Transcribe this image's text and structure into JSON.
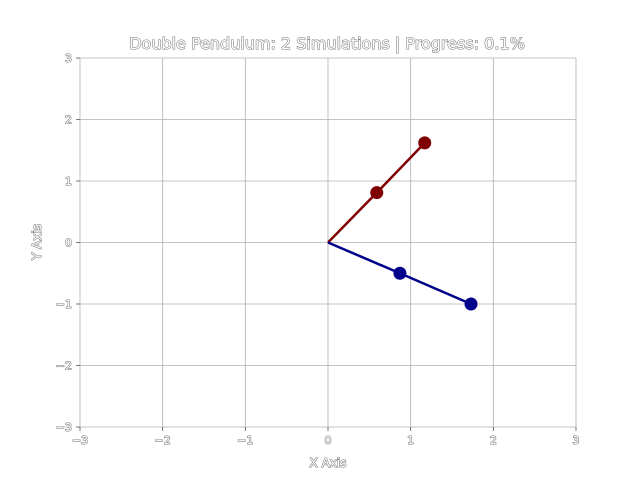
{
  "chart_data": {
    "type": "line",
    "title": "Double Pendulum: 2 Simulations | Progress: 0.1%",
    "xlabel": "X Axis",
    "ylabel": "Y Axis",
    "xlim": [
      -3,
      3
    ],
    "ylim": [
      -3,
      3
    ],
    "xticks": [
      -3,
      -2,
      -1,
      0,
      1,
      2,
      3
    ],
    "yticks": [
      -3,
      -2,
      -1,
      0,
      1,
      2,
      3
    ],
    "xtick_labels": [
      "−3",
      "−2",
      "−1",
      "0",
      "1",
      "2",
      "3"
    ],
    "ytick_labels": [
      "−3",
      "−2",
      "−1",
      "0",
      "1",
      "2",
      "3"
    ],
    "grid": true,
    "pivot": [
      0,
      0
    ],
    "series": [
      {
        "color": "#7f0000",
        "x": [
          0,
          0.59,
          1.17
        ],
        "y": [
          0,
          0.81,
          1.62
        ]
      },
      {
        "color": "#00008b",
        "x": [
          0,
          0.87,
          1.73
        ],
        "y": [
          0,
          -0.5,
          -1.0
        ]
      }
    ]
  }
}
